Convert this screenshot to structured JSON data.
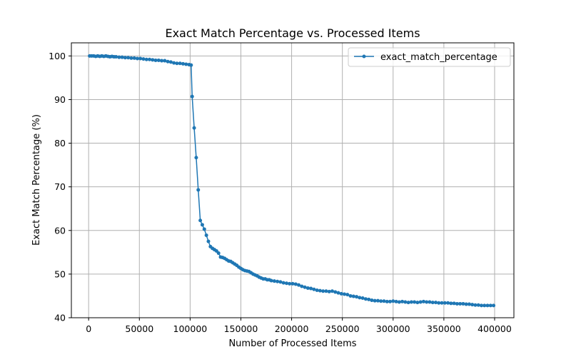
{
  "chart_data": {
    "type": "line",
    "title": "Exact Match Percentage vs. Processed Items",
    "xlabel": "Number of Processed Items",
    "ylabel": "Exact Match Percentage (%)",
    "xlim": [
      -17000,
      419000
    ],
    "ylim": [
      40,
      103
    ],
    "xticks": [
      0,
      50000,
      100000,
      150000,
      200000,
      250000,
      300000,
      350000,
      400000
    ],
    "yticks": [
      40,
      50,
      60,
      70,
      80,
      90,
      100
    ],
    "grid": true,
    "legend_position": "top-right",
    "series": [
      {
        "name": "exact_match_percentage",
        "color": "#1f77b4",
        "marker": "circle",
        "points": [
          [
            1000,
            100.0
          ],
          [
            3000,
            100.0
          ],
          [
            5000,
            100.0
          ],
          [
            7000,
            99.9
          ],
          [
            9000,
            100.0
          ],
          [
            11000,
            99.9
          ],
          [
            13000,
            100.0
          ],
          [
            15000,
            99.9
          ],
          [
            17000,
            100.0
          ],
          [
            19000,
            99.9
          ],
          [
            21000,
            99.8
          ],
          [
            23000,
            99.9
          ],
          [
            25000,
            99.8
          ],
          [
            27000,
            99.8
          ],
          [
            30000,
            99.7
          ],
          [
            33000,
            99.7
          ],
          [
            36000,
            99.6
          ],
          [
            39000,
            99.6
          ],
          [
            42000,
            99.5
          ],
          [
            45000,
            99.5
          ],
          [
            48000,
            99.4
          ],
          [
            51000,
            99.4
          ],
          [
            54000,
            99.3
          ],
          [
            57000,
            99.2
          ],
          [
            60000,
            99.2
          ],
          [
            63000,
            99.1
          ],
          [
            66000,
            99.0
          ],
          [
            69000,
            99.0
          ],
          [
            72000,
            98.9
          ],
          [
            75000,
            98.9
          ],
          [
            78000,
            98.7
          ],
          [
            81000,
            98.6
          ],
          [
            84000,
            98.4
          ],
          [
            87000,
            98.3
          ],
          [
            90000,
            98.3
          ],
          [
            93000,
            98.2
          ],
          [
            96000,
            98.1
          ],
          [
            99000,
            98.0
          ],
          [
            101000,
            97.9
          ],
          [
            102000,
            90.7
          ],
          [
            104000,
            83.5
          ],
          [
            106000,
            76.7
          ],
          [
            108000,
            69.3
          ],
          [
            110000,
            62.3
          ],
          [
            112000,
            61.3
          ],
          [
            114000,
            60.3
          ],
          [
            116000,
            58.9
          ],
          [
            118000,
            57.5
          ],
          [
            120000,
            56.3
          ],
          [
            122000,
            55.9
          ],
          [
            124000,
            55.6
          ],
          [
            126000,
            55.3
          ],
          [
            128000,
            54.8
          ],
          [
            130000,
            53.9
          ],
          [
            132000,
            53.8
          ],
          [
            134000,
            53.6
          ],
          [
            136000,
            53.3
          ],
          [
            138000,
            53.0
          ],
          [
            140000,
            52.9
          ],
          [
            142000,
            52.6
          ],
          [
            144000,
            52.3
          ],
          [
            146000,
            52.0
          ],
          [
            148000,
            51.6
          ],
          [
            150000,
            51.3
          ],
          [
            152000,
            51.0
          ],
          [
            154000,
            50.8
          ],
          [
            156000,
            50.7
          ],
          [
            158000,
            50.6
          ],
          [
            160000,
            50.3
          ],
          [
            162000,
            50.0
          ],
          [
            164000,
            49.8
          ],
          [
            166000,
            49.6
          ],
          [
            168000,
            49.3
          ],
          [
            170000,
            49.1
          ],
          [
            172000,
            48.9
          ],
          [
            174000,
            48.9
          ],
          [
            176000,
            48.7
          ],
          [
            178000,
            48.7
          ],
          [
            180000,
            48.5
          ],
          [
            183000,
            48.4
          ],
          [
            186000,
            48.3
          ],
          [
            189000,
            48.2
          ],
          [
            192000,
            48.0
          ],
          [
            195000,
            47.9
          ],
          [
            198000,
            47.8
          ],
          [
            201000,
            47.8
          ],
          [
            204000,
            47.7
          ],
          [
            207000,
            47.5
          ],
          [
            210000,
            47.2
          ],
          [
            213000,
            47.0
          ],
          [
            216000,
            46.8
          ],
          [
            219000,
            46.7
          ],
          [
            222000,
            46.5
          ],
          [
            225000,
            46.3
          ],
          [
            228000,
            46.2
          ],
          [
            231000,
            46.1
          ],
          [
            234000,
            46.1
          ],
          [
            237000,
            46.0
          ],
          [
            240000,
            46.1
          ],
          [
            243000,
            45.9
          ],
          [
            246000,
            45.7
          ],
          [
            249000,
            45.5
          ],
          [
            252000,
            45.4
          ],
          [
            255000,
            45.3
          ],
          [
            258000,
            45.0
          ],
          [
            261000,
            44.9
          ],
          [
            264000,
            44.8
          ],
          [
            267000,
            44.6
          ],
          [
            270000,
            44.5
          ],
          [
            273000,
            44.3
          ],
          [
            276000,
            44.2
          ],
          [
            279000,
            44.0
          ],
          [
            282000,
            43.9
          ],
          [
            285000,
            43.9
          ],
          [
            288000,
            43.8
          ],
          [
            291000,
            43.8
          ],
          [
            294000,
            43.7
          ],
          [
            297000,
            43.7
          ],
          [
            300000,
            43.8
          ],
          [
            303000,
            43.7
          ],
          [
            306000,
            43.6
          ],
          [
            309000,
            43.7
          ],
          [
            312000,
            43.6
          ],
          [
            315000,
            43.5
          ],
          [
            318000,
            43.6
          ],
          [
            321000,
            43.6
          ],
          [
            324000,
            43.5
          ],
          [
            327000,
            43.6
          ],
          [
            330000,
            43.7
          ],
          [
            333000,
            43.6
          ],
          [
            336000,
            43.6
          ],
          [
            339000,
            43.5
          ],
          [
            342000,
            43.5
          ],
          [
            345000,
            43.4
          ],
          [
            348000,
            43.4
          ],
          [
            351000,
            43.4
          ],
          [
            354000,
            43.4
          ],
          [
            357000,
            43.3
          ],
          [
            360000,
            43.3
          ],
          [
            363000,
            43.2
          ],
          [
            366000,
            43.2
          ],
          [
            369000,
            43.2
          ],
          [
            372000,
            43.1
          ],
          [
            375000,
            43.1
          ],
          [
            378000,
            43.0
          ],
          [
            381000,
            42.9
          ],
          [
            384000,
            42.9
          ],
          [
            387000,
            42.8
          ],
          [
            390000,
            42.8
          ],
          [
            393000,
            42.8
          ],
          [
            396000,
            42.8
          ],
          [
            399000,
            42.8
          ]
        ]
      }
    ]
  }
}
